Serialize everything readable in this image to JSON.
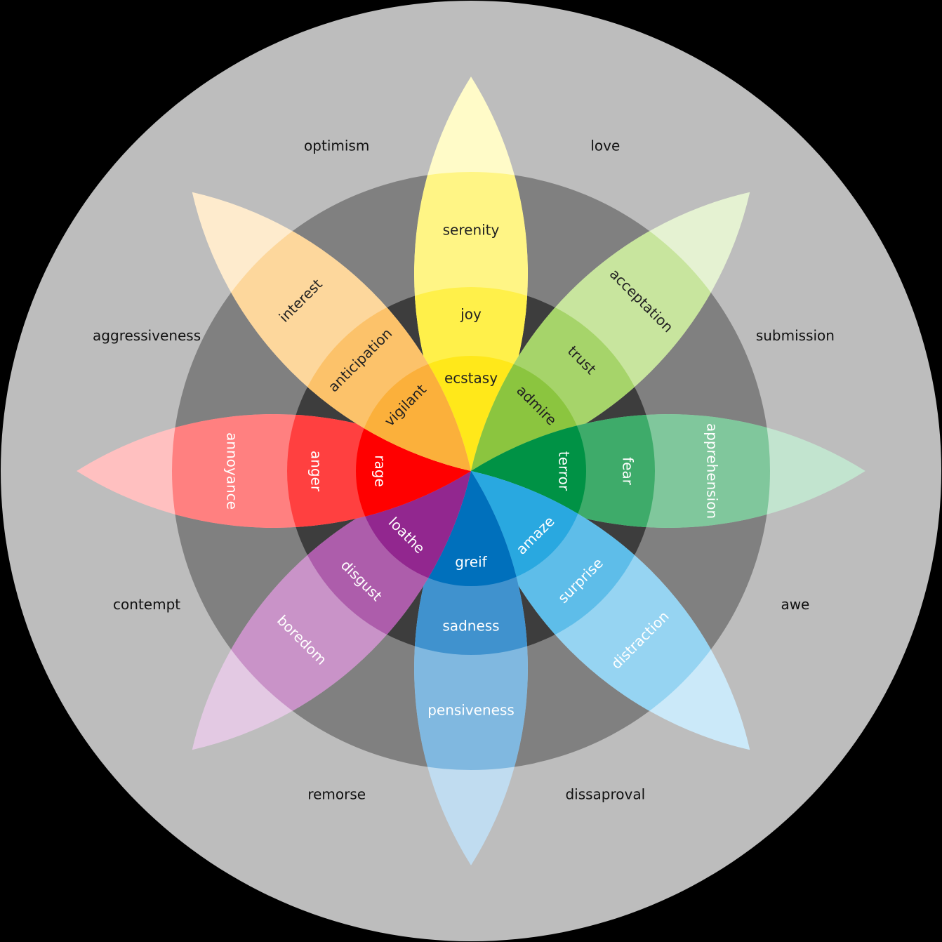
{
  "colors": {
    "background": "#000000",
    "outer_ring": "#bdbdbd",
    "middle_ring": "#808080",
    "inner_ring": "#3d3d3d"
  },
  "petals": [
    {
      "id": "joy",
      "tiers": [
        "ecstasy",
        "joy",
        "serenity"
      ],
      "colors": [
        "#ffe81a",
        "#fff04a",
        "#fff585",
        "#fffbc8"
      ],
      "text": [
        "#222222",
        "#222222",
        "#222222"
      ]
    },
    {
      "id": "trust",
      "tiers": [
        "admire",
        "trust",
        "acceptation"
      ],
      "colors": [
        "#8bc53f",
        "#a6d46a",
        "#c8e59e",
        "#e5f2d2"
      ],
      "text": [
        "#222222",
        "#222222",
        "#222222"
      ]
    },
    {
      "id": "fear",
      "tiers": [
        "terror",
        "fear",
        "apprehension"
      ],
      "colors": [
        "#009245",
        "#3eab6a",
        "#80c79c",
        "#c2e4cf"
      ],
      "text": [
        "#ffffff",
        "#ffffff",
        "#ffffff"
      ]
    },
    {
      "id": "surprise",
      "tiers": [
        "amaze",
        "surprise",
        "distraction"
      ],
      "colors": [
        "#29a8e0",
        "#5ebde9",
        "#96d4f2",
        "#cbe9f9"
      ],
      "text": [
        "#ffffff",
        "#ffffff",
        "#ffffff"
      ]
    },
    {
      "id": "sadness",
      "tiers": [
        "greif",
        "sadness",
        "pensiveness"
      ],
      "colors": [
        "#0070bc",
        "#4092ce",
        "#80b8e0",
        "#c0dcf0"
      ],
      "text": [
        "#ffffff",
        "#ffffff",
        "#ffffff"
      ]
    },
    {
      "id": "disgust",
      "tiers": [
        "loathe",
        "disgust",
        "boredom"
      ],
      "colors": [
        "#92278f",
        "#ad5dab",
        "#c993c8",
        "#e3c9e3"
      ],
      "text": [
        "#ffffff",
        "#ffffff",
        "#ffffff"
      ]
    },
    {
      "id": "anger",
      "tiers": [
        "rage",
        "anger",
        "annoyance"
      ],
      "colors": [
        "#ff0000",
        "#ff4040",
        "#ff8080",
        "#ffc0c0"
      ],
      "text": [
        "#ffffff",
        "#ffffff",
        "#ffffff"
      ]
    },
    {
      "id": "anticipation",
      "tiers": [
        "vigilant",
        "anticipation",
        "interest"
      ],
      "colors": [
        "#fbb03b",
        "#fcc26a",
        "#fdd79c",
        "#feebcd"
      ],
      "text": [
        "#222222",
        "#222222",
        "#222222"
      ]
    }
  ],
  "dyads": [
    "love",
    "submission",
    "awe",
    "dissaproval",
    "remorse",
    "contempt",
    "aggressiveness",
    "optimism"
  ]
}
